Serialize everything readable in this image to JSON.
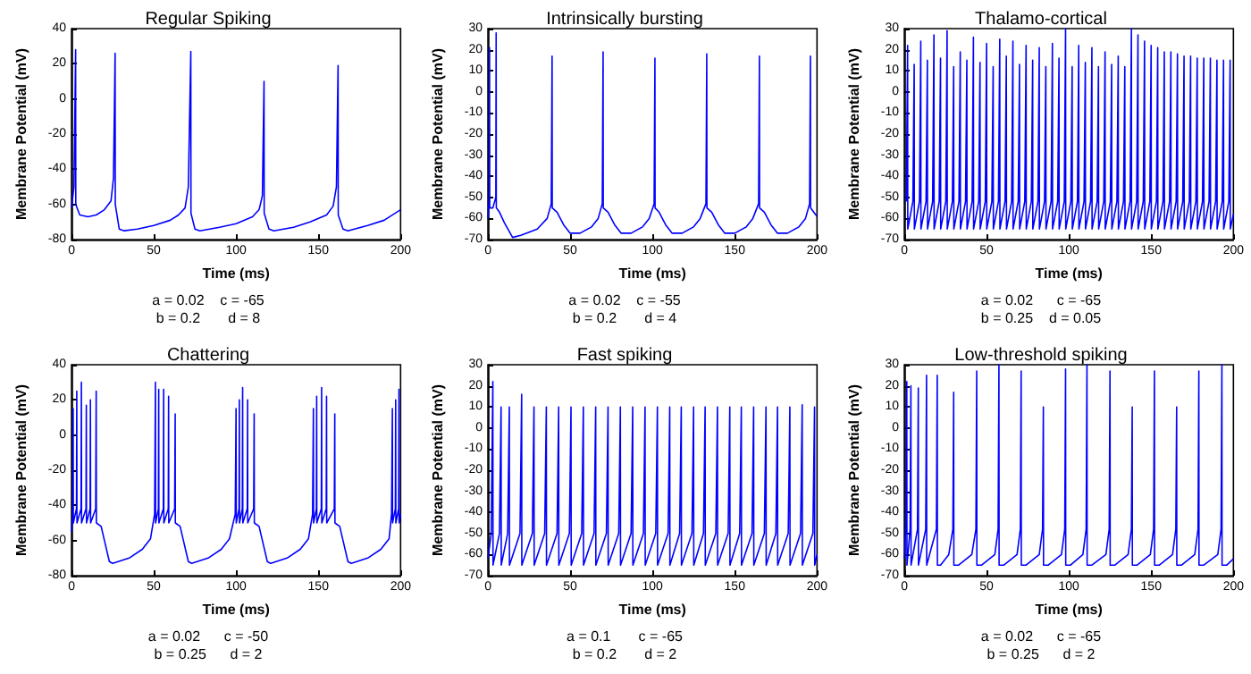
{
  "chart_data": [
    {
      "type": "line",
      "title": "Regular Spiking",
      "xlabel": "Time (ms)",
      "ylabel": "Membrane Potential (mV)",
      "annotations": [
        "a = 0.02    c = -65",
        "b = 0.2       d = 8"
      ],
      "xlim": [
        0,
        200
      ],
      "xticks": [
        0,
        50,
        100,
        150,
        200
      ],
      "ylim": [
        -80,
        40
      ],
      "yticks": [
        -80,
        -60,
        -40,
        -20,
        0,
        20,
        40
      ],
      "color": "#0000ff",
      "x": [
        0,
        1.5,
        2.5,
        2.6,
        5,
        10,
        15,
        20,
        24,
        25.5,
        26.5,
        26.6,
        29,
        32,
        40,
        50,
        60,
        65,
        69,
        71,
        72.5,
        72.6,
        75,
        78,
        90,
        100,
        110,
        114,
        116,
        117,
        117.1,
        120,
        123,
        135,
        145,
        155,
        159,
        161,
        162,
        162.1,
        165,
        168,
        180,
        190,
        200
      ],
      "values": [
        -62,
        -50,
        28,
        -60,
        -66,
        -67,
        -66,
        -63,
        -58,
        -45,
        26,
        -60,
        -74,
        -75,
        -74,
        -72,
        -69,
        -66,
        -62,
        -50,
        27,
        -65,
        -74,
        -75,
        -73,
        -71,
        -67,
        -63,
        -55,
        10,
        -65,
        -74,
        -75,
        -73,
        -70,
        -66,
        -61,
        -50,
        19,
        -66,
        -74,
        -75,
        -72,
        -69,
        -63
      ]
    },
    {
      "type": "line",
      "title": "Intrinsically bursting",
      "xlabel": "Time (ms)",
      "ylabel": "Membrane Potential (mV)",
      "annotations": [
        "a = 0.02    c = -55",
        "b = 0.2       d = 4"
      ],
      "xlim": [
        0,
        200
      ],
      "xticks": [
        0,
        50,
        100,
        150,
        200
      ],
      "ylim": [
        -70,
        30
      ],
      "yticks": [
        -70,
        -60,
        -50,
        -40,
        -30,
        -20,
        -10,
        0,
        10,
        20,
        30
      ],
      "color": "#0000ff",
      "x": [
        0,
        0.8,
        1,
        1.1,
        3,
        4.8,
        5,
        5.1,
        7,
        10,
        15,
        20,
        30,
        36,
        38.5,
        39,
        39.1,
        42,
        46,
        50,
        56,
        63,
        67,
        69.5,
        70,
        70.1,
        73,
        77,
        81,
        87,
        94,
        98,
        101,
        101.5,
        101.6,
        104,
        108,
        112,
        118,
        125,
        129,
        132.5,
        133,
        133.1,
        136,
        140,
        144,
        150,
        157,
        161,
        164.5,
        165,
        165.1,
        168,
        172,
        176,
        182,
        189,
        193,
        195.5,
        196,
        196.1,
        199,
        200
      ],
      "values": [
        -60,
        -50,
        21,
        -55,
        -55,
        -50,
        28,
        -55,
        -57,
        -62,
        -69,
        -68,
        -65,
        -60,
        -53,
        17,
        -55,
        -57,
        -63,
        -67,
        -67,
        -64,
        -60,
        -53,
        19,
        -55,
        -57,
        -63,
        -67,
        -67,
        -64,
        -60,
        -53,
        16,
        -55,
        -57,
        -63,
        -67,
        -67,
        -64,
        -60,
        -53,
        18,
        -55,
        -57,
        -63,
        -67,
        -67,
        -64,
        -60,
        -53,
        17,
        -55,
        -57,
        -63,
        -67,
        -67,
        -64,
        -60,
        -53,
        17,
        -55,
        -58,
        -59
      ]
    },
    {
      "type": "line",
      "title": "Thalamo-cortical",
      "xlabel": "Time (ms)",
      "ylabel": "Membrane Potential (mV)",
      "annotations": [
        "a = 0.02      c = -65",
        "b = 0.25    d = 0.05"
      ],
      "xlim": [
        0,
        200
      ],
      "xticks": [
        0,
        50,
        100,
        150,
        200
      ],
      "ylim": [
        -70,
        30
      ],
      "yticks": [
        -70,
        -60,
        -50,
        -40,
        -30,
        -20,
        -10,
        0,
        10,
        20,
        30
      ],
      "color": "#0000ff",
      "x": [
        1.2,
        2,
        2.1,
        5.2,
        6,
        6.1,
        9.2,
        10,
        10.1,
        13.2,
        14,
        14.1,
        17.2,
        18,
        18.1,
        21.2,
        22,
        22.1,
        25.2,
        26,
        26.1,
        29.2,
        30,
        30.1,
        33.2,
        34,
        34.1,
        37.2,
        38,
        38.1,
        41.2,
        42,
        42.1,
        45.2,
        46,
        46.1,
        49.2,
        50,
        50.1,
        53.2,
        54,
        54.1,
        57.2,
        58,
        58.1,
        61.2,
        62,
        62.1,
        65.2,
        66,
        66.1,
        69.2,
        70,
        70.1,
        73.2,
        74,
        74.1,
        77.2,
        78,
        78.1,
        81.2,
        82,
        82.1,
        85.2,
        86,
        86.1,
        89.2,
        90,
        90.1,
        93.2,
        94,
        94.1,
        97.2,
        98,
        98.1,
        101.2,
        102,
        102.1,
        105.2,
        106,
        106.1,
        109.2,
        110,
        110.1,
        113.2,
        114,
        114.1,
        117.2,
        118,
        118.1,
        121.2,
        122,
        122.1,
        125.2,
        126,
        126.1,
        129.2,
        130,
        130.1,
        133.2,
        134,
        134.1,
        137.2,
        138,
        138.1,
        141.2,
        142,
        142.1,
        145.2,
        146,
        146.1,
        149.2,
        150,
        150.1,
        153.2,
        154,
        154.1,
        157.2,
        158,
        158.1,
        161.2,
        162,
        162.1,
        165.2,
        166,
        166.1,
        169.2,
        170,
        170.1,
        173.2,
        174,
        174.1,
        177.2,
        178,
        178.1,
        181.2,
        182,
        182.1,
        185.2,
        186,
        186.1,
        189.2,
        190,
        190.1,
        193.2,
        194,
        194.1,
        197.2,
        198,
        198.1,
        200
      ],
      "values": [
        -52,
        22,
        -65,
        -52,
        13,
        -65,
        -52,
        24,
        -65,
        -52,
        15,
        -65,
        -52,
        27,
        -65,
        -52,
        16,
        -65,
        -52,
        29,
        -65,
        -52,
        12,
        -65,
        -52,
        19,
        -65,
        -52,
        15,
        -65,
        -52,
        26,
        -65,
        -52,
        14,
        -65,
        -52,
        23,
        -65,
        -52,
        12,
        -65,
        -52,
        25,
        -65,
        -52,
        17,
        -65,
        -52,
        24,
        -65,
        -52,
        13,
        -65,
        -52,
        22,
        -65,
        -52,
        15,
        -65,
        -52,
        21,
        -65,
        -52,
        12,
        -65,
        -52,
        23,
        -65,
        -52,
        16,
        -65,
        -52,
        30,
        -65,
        -52,
        12,
        -65,
        -52,
        22,
        -65,
        -52,
        14,
        -65,
        -52,
        21,
        -65,
        -52,
        12,
        -65,
        -52,
        19,
        -65,
        -52,
        13,
        -65,
        -52,
        17,
        -65,
        -52,
        12,
        -65,
        -52,
        30,
        -65,
        -52,
        27,
        -65,
        -52,
        24,
        -65,
        -52,
        22,
        -65,
        -52,
        21,
        -65,
        -52,
        19,
        -65,
        -52,
        19,
        -65,
        -52,
        18,
        -65,
        -52,
        17,
        -65,
        -52,
        17,
        -65,
        -52,
        16,
        -65,
        -52,
        16,
        -65,
        -52,
        16,
        -65,
        -52,
        15,
        -65,
        -52,
        15,
        -65,
        -52,
        15,
        -65,
        -58
      ]
    },
    {
      "type": "line",
      "title": "Chattering",
      "xlabel": "Time (ms)",
      "ylabel": "Membrane Potential (mV)",
      "annotations": [
        "a = 0.02      c = -50",
        "b = 0.25      d = 2"
      ],
      "xlim": [
        0,
        200
      ],
      "xticks": [
        0,
        50,
        100,
        150,
        200
      ],
      "ylim": [
        -80,
        40
      ],
      "yticks": [
        -80,
        -60,
        -40,
        -20,
        0,
        20,
        40
      ],
      "color": "#0000ff",
      "x": [
        0,
        0.8,
        1,
        1.1,
        3,
        3.2,
        3.3,
        5.8,
        6,
        6.1,
        8.8,
        9,
        9.1,
        11.3,
        11.5,
        11.6,
        14.7,
        15,
        15.1,
        18,
        20,
        23,
        25,
        35,
        43,
        48,
        50.5,
        51,
        51.1,
        52.8,
        53,
        53.1,
        55.8,
        56,
        56.1,
        58.8,
        59,
        59.1,
        62.7,
        63,
        63.1,
        66,
        68,
        71,
        73,
        83,
        91,
        96,
        99.5,
        100,
        100.1,
        101.8,
        102,
        102.1,
        103.8,
        104,
        104.1,
        106.8,
        107,
        107.1,
        110.7,
        111,
        111.1,
        114,
        116,
        119,
        121,
        131,
        139,
        144,
        146.5,
        147,
        147.1,
        148.8,
        149,
        149.1,
        151.8,
        152,
        152.1,
        154.8,
        155,
        155.1,
        159.7,
        160,
        160.1,
        163,
        165,
        168,
        170,
        180,
        188,
        193,
        194.5,
        195,
        195.1,
        196.8,
        197,
        197.1,
        198.8,
        199,
        199.1,
        200
      ],
      "values": [
        -55,
        -45,
        15,
        -50,
        -42,
        25,
        -50,
        -42,
        30,
        -50,
        -42,
        17,
        -50,
        -42,
        20,
        -50,
        -42,
        25,
        -50,
        -52,
        -60,
        -72,
        -73,
        -70,
        -65,
        -59,
        -45,
        30,
        -50,
        -42,
        26,
        -50,
        -42,
        26,
        -50,
        -42,
        22,
        -50,
        -42,
        12,
        -50,
        -52,
        -60,
        -72,
        -73,
        -70,
        -65,
        -59,
        -45,
        15,
        -50,
        -42,
        20,
        -50,
        -42,
        27,
        -50,
        -42,
        20,
        -50,
        -42,
        12,
        -50,
        -52,
        -60,
        -72,
        -73,
        -70,
        -65,
        -59,
        -45,
        15,
        -50,
        -42,
        22,
        -50,
        -42,
        27,
        -50,
        -42,
        22,
        -50,
        -42,
        12,
        -50,
        -52,
        -60,
        -72,
        -73,
        -70,
        -65,
        -59,
        -45,
        15,
        -50,
        -42,
        20,
        -50,
        -42,
        26,
        -50,
        -45
      ]
    },
    {
      "type": "line",
      "title": "Fast spiking",
      "xlabel": "Time (ms)",
      "ylabel": "Membrane Potential (mV)",
      "annotations": [
        "a = 0.1       c = -65",
        "b = 0.2       d = 2"
      ],
      "xlim": [
        0,
        200
      ],
      "xticks": [
        0,
        50,
        100,
        150,
        200
      ],
      "ylim": [
        -70,
        30
      ],
      "yticks": [
        -70,
        -60,
        -50,
        -40,
        -30,
        -20,
        -10,
        0,
        10,
        20,
        30
      ],
      "color": "#0000ff",
      "x": [
        0,
        2,
        3,
        3.1,
        7,
        8,
        8.1,
        12,
        13,
        13.1,
        19.5,
        20.5,
        20.6,
        27,
        28,
        28.1,
        34.5,
        35.5,
        35.6,
        42,
        43,
        43.1,
        49.5,
        50.5,
        50.6,
        57,
        58,
        58.1,
        64.5,
        65.5,
        65.6,
        72,
        73,
        73.1,
        79.5,
        80.5,
        80.6,
        87,
        88,
        88.1,
        94.5,
        95.5,
        95.6,
        102,
        103,
        103.1,
        109.5,
        110.5,
        110.6,
        116.5,
        117.5,
        117.6,
        124,
        125,
        125.1,
        131,
        132,
        132.1,
        138.5,
        139.5,
        139.6,
        146,
        147,
        147.1,
        153,
        154,
        154.1,
        160.5,
        161.5,
        161.6,
        168,
        169,
        169.1,
        175,
        176,
        176.1,
        182.5,
        183.5,
        183.6,
        190,
        191,
        191.1,
        197.5,
        198.5,
        198.6,
        200
      ],
      "values": [
        -62,
        -50,
        22,
        -65,
        -50,
        10,
        -65,
        -50,
        10,
        -65,
        -50,
        16,
        -65,
        -50,
        10,
        -65,
        -50,
        10,
        -65,
        -50,
        10,
        -65,
        -50,
        10,
        -65,
        -50,
        10,
        -65,
        -50,
        10,
        -65,
        -50,
        10,
        -65,
        -50,
        10,
        -65,
        -50,
        10,
        -65,
        -50,
        10,
        -65,
        -50,
        10,
        -65,
        -50,
        10,
        -65,
        -50,
        10,
        -65,
        -50,
        10,
        -65,
        -50,
        10,
        -65,
        -50,
        10,
        -65,
        -50,
        10,
        -65,
        -50,
        10,
        -65,
        -50,
        10,
        -65,
        -50,
        10,
        -65,
        -50,
        10,
        -65,
        -50,
        10,
        -65,
        -50,
        11,
        -65,
        -50,
        10,
        -65,
        -60
      ]
    },
    {
      "type": "line",
      "title": "Low-threshold spiking",
      "xlabel": "Time (ms)",
      "ylabel": "Membrane Potential (mV)",
      "annotations": [
        "a = 0.02      c = -65",
        "b = 0.25      d = 2"
      ],
      "xlim": [
        0,
        200
      ],
      "xticks": [
        0,
        50,
        100,
        150,
        200
      ],
      "ylim": [
        -70,
        30
      ],
      "yticks": [
        -70,
        -60,
        -50,
        -40,
        -30,
        -20,
        -10,
        0,
        10,
        20,
        30
      ],
      "color": "#0000ff",
      "x": [
        0,
        1,
        1.5,
        1.6,
        3.5,
        4,
        4.1,
        8,
        8.5,
        8.6,
        13,
        13.5,
        13.6,
        19.5,
        20,
        20.1,
        22,
        27,
        29.5,
        30,
        30.1,
        33,
        41,
        43.5,
        44,
        44.1,
        47,
        55,
        57,
        57.5,
        57.6,
        60.5,
        68.5,
        70.5,
        71,
        71.1,
        74,
        82,
        84,
        84.5,
        84.6,
        87.5,
        95.5,
        97.5,
        98,
        98.1,
        101,
        108.5,
        110.5,
        111,
        111.1,
        114,
        122.5,
        124.5,
        125,
        125.1,
        128,
        136,
        138,
        138.5,
        138.6,
        141.5,
        149.5,
        151.5,
        152,
        152.1,
        155,
        163,
        165,
        165.5,
        165.6,
        168.5,
        176.5,
        178.5,
        179,
        179.1,
        182,
        190.5,
        192.5,
        193,
        193.1,
        196,
        200
      ],
      "values": [
        -62,
        -45,
        22,
        -65,
        -48,
        20,
        -65,
        -48,
        19,
        -65,
        -48,
        25,
        -65,
        -48,
        25,
        -65,
        -65,
        -60,
        -48,
        17,
        -65,
        -65,
        -60,
        -48,
        27,
        -65,
        -65,
        -60,
        -48,
        30,
        -65,
        -65,
        -60,
        -48,
        27,
        -65,
        -65,
        -60,
        -48,
        10,
        -65,
        -65,
        -60,
        -48,
        28,
        -65,
        -65,
        -60,
        -48,
        30,
        -65,
        -65,
        -60,
        -48,
        27,
        -65,
        -65,
        -60,
        -48,
        10,
        -65,
        -65,
        -60,
        -48,
        27,
        -65,
        -65,
        -60,
        -48,
        10,
        -65,
        -65,
        -60,
        -48,
        27,
        -65,
        -65,
        -60,
        -48,
        30,
        -65,
        -65,
        -62
      ]
    }
  ]
}
